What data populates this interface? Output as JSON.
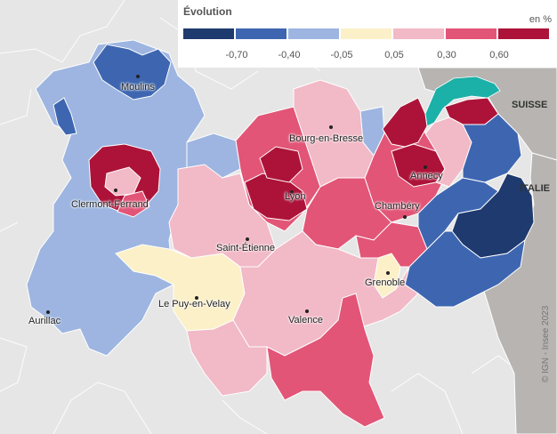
{
  "legend": {
    "title": "Évolution",
    "unit": "en %",
    "classes": [
      {
        "color": "#1f3a6e"
      },
      {
        "color": "#3e66b0"
      },
      {
        "color": "#9db5e0"
      },
      {
        "color": "#fbf0c8"
      },
      {
        "color": "#f2b9c7"
      },
      {
        "color": "#e25577"
      },
      {
        "color": "#ad1339"
      }
    ],
    "ticks": [
      "-0,70",
      "-0,40",
      "-0,05",
      "0,05",
      "0,30",
      "0,60"
    ]
  },
  "countries": {
    "switzerland": "SUISSE",
    "italy": "ITALIE"
  },
  "cities": [
    {
      "name": "Moulins"
    },
    {
      "name": "Bourg-en-Bresse"
    },
    {
      "name": "Annecy"
    },
    {
      "name": "Clermont-Ferrand"
    },
    {
      "name": "Lyon"
    },
    {
      "name": "Chambéry"
    },
    {
      "name": "Saint-Étienne"
    },
    {
      "name": "Grenoble"
    },
    {
      "name": "Le Puy-en-Velay"
    },
    {
      "name": "Valence"
    },
    {
      "name": "Aurillac"
    }
  ],
  "copyright": "© IGN - Insee 2023",
  "colors": {
    "foreign": "#b7b4b1",
    "lake": "#1bb0a8",
    "background": "#e6e6e6"
  }
}
